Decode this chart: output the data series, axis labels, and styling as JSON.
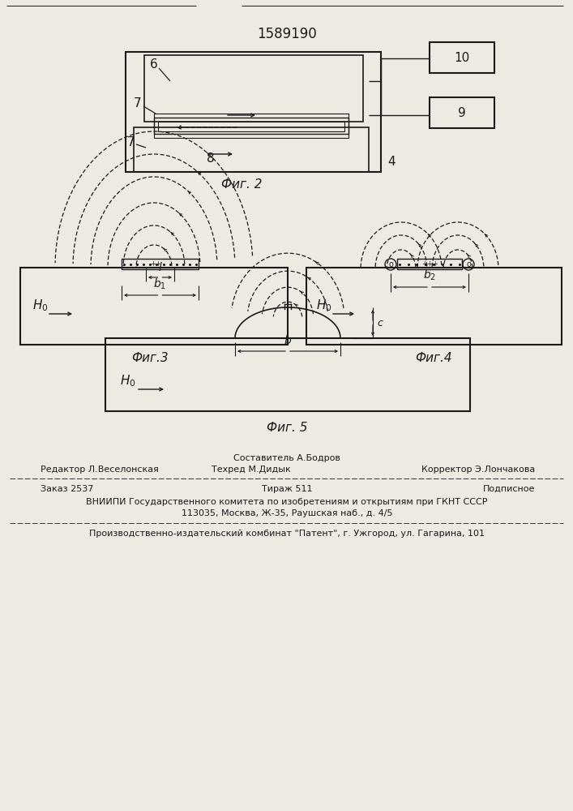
{
  "title": "1589190",
  "bg_color": "#ede9e3",
  "line_color": "#1a1a1a",
  "fig2_label": "Фиг. 2",
  "fig3_label": "Фиг.3",
  "fig4_label": "Фиг.4",
  "fig5_label": "Фиг. 5"
}
